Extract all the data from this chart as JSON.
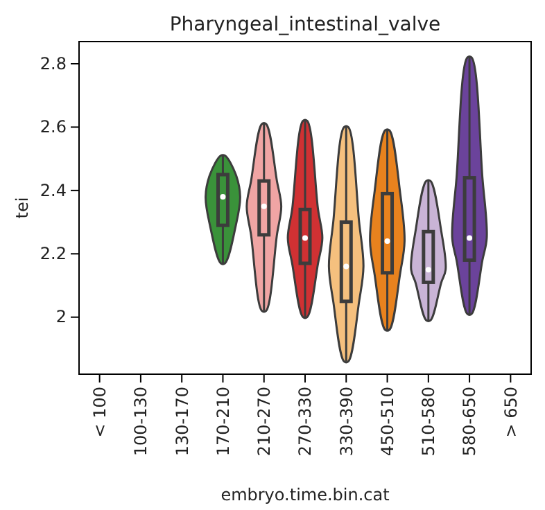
{
  "chart_data": {
    "type": "box",
    "title": "Pharyngeal_intestinal_valve",
    "xlabel": "embryo.time.bin.cat",
    "ylabel": "tei",
    "categories": [
      "< 100",
      "100-130",
      "130-170",
      "170-210",
      "210-270",
      "270-330",
      "330-390",
      "450-510",
      "510-580",
      "580-650",
      "> 650"
    ],
    "boxes": [
      null,
      null,
      null,
      {
        "low": 2.17,
        "q1": 2.29,
        "median": 2.38,
        "q3": 2.45,
        "high": 2.51
      },
      {
        "low": 2.02,
        "q1": 2.26,
        "median": 2.35,
        "q3": 2.43,
        "high": 2.61
      },
      {
        "low": 2.0,
        "q1": 2.17,
        "median": 2.25,
        "q3": 2.34,
        "high": 2.62
      },
      {
        "low": 1.86,
        "q1": 2.05,
        "median": 2.16,
        "q3": 2.3,
        "high": 2.6
      },
      {
        "low": 1.96,
        "q1": 2.14,
        "median": 2.24,
        "q3": 2.39,
        "high": 2.59
      },
      {
        "low": 1.99,
        "q1": 2.11,
        "median": 2.15,
        "q3": 2.27,
        "high": 2.43
      },
      {
        "low": 2.01,
        "q1": 2.18,
        "median": 2.25,
        "q3": 2.44,
        "high": 2.82
      },
      null
    ],
    "colors": [
      null,
      null,
      null,
      "#3a923a",
      "#f0a5a4",
      "#d03133",
      "#f5c07e",
      "#e8821e",
      "#c9b4d6",
      "#6b439b",
      null
    ],
    "ylim": [
      1.82,
      2.87
    ],
    "yticks": [
      2.0,
      2.2,
      2.4,
      2.6,
      2.8
    ]
  }
}
